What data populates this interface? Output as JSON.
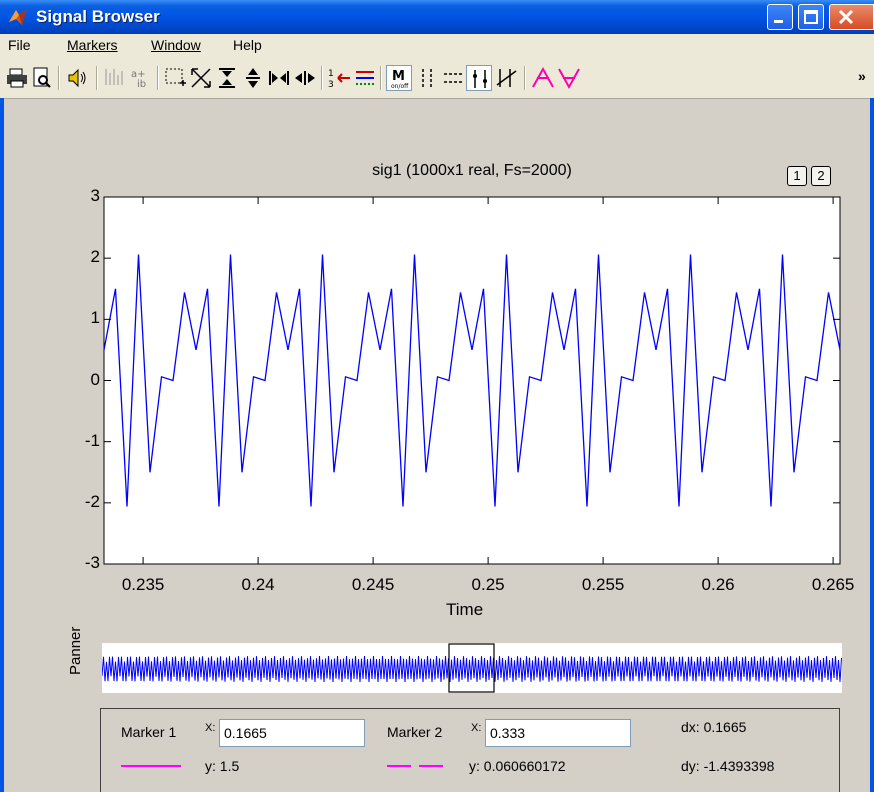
{
  "window": {
    "title": "Signal Browser"
  },
  "menu": [
    "File",
    "Markers",
    "Window",
    "Help"
  ],
  "toolbar": {
    "icons": [
      "print-icon",
      "print-preview-icon",
      "play-sound-icon",
      "stem-plot-icon",
      "complex-format-icon",
      "zoom-box-icon",
      "zoom-fit-icon",
      "zoom-in-y-icon",
      "zoom-out-y-icon",
      "zoom-in-x-icon",
      "zoom-out-x-icon",
      "select-trace-icon",
      "line-properties-icon",
      "markers-toggle-icon",
      "vertical-markers-icon",
      "horizontal-markers-icon",
      "track-markers-icon",
      "slope-markers-icon",
      "peaks-icon",
      "valleys-icon"
    ],
    "overflow": "»"
  },
  "axes_buttons": [
    "1",
    "2"
  ],
  "chart_data": {
    "type": "line",
    "title": "sig1 (1000x1 real, Fs=2000)",
    "xlabel": "Time",
    "ylabel": "",
    "xlim": [
      0.2333,
      0.2653
    ],
    "ylim": [
      -3,
      3
    ],
    "xticks": [
      0.235,
      0.24,
      0.245,
      0.25,
      0.255,
      0.26,
      0.265
    ],
    "xtick_labels": [
      "0.235",
      "0.24",
      "0.245",
      "0.25",
      "0.255",
      "0.26",
      "0.265"
    ],
    "yticks": [
      3,
      2,
      1,
      0,
      -1,
      -2,
      -3
    ],
    "ytick_labels": [
      "3",
      "2",
      "1",
      "0",
      "-1",
      "-2",
      "-3"
    ],
    "grid": false,
    "series": [
      {
        "color": "#0000ff",
        "period": 0.004,
        "start": 0.2333,
        "cycle_x": [
          0,
          0.0005,
          0.001,
          0.0015,
          0.002,
          0.0025,
          0.003,
          0.0035
        ],
        "cycle_y": [
          0.5,
          1.5,
          -2.06,
          2.06,
          -1.5,
          0.06,
          0.0,
          1.44
        ]
      }
    ]
  },
  "panner": {
    "label": "Panner",
    "color": "#0000ff"
  },
  "markers": {
    "m1_label": "Marker 1",
    "m1_x_label": "X:",
    "m1_x": "0.1665",
    "m1_y": "y: 1.5",
    "m2_label": "Marker 2",
    "m2_x_label": "X:",
    "m2_x": "0.333",
    "m2_y": "y: 0.060660172",
    "dx": "dx: 0.1665",
    "dy": "dy: -1.4393398",
    "line_color": "#ff00ff"
  }
}
